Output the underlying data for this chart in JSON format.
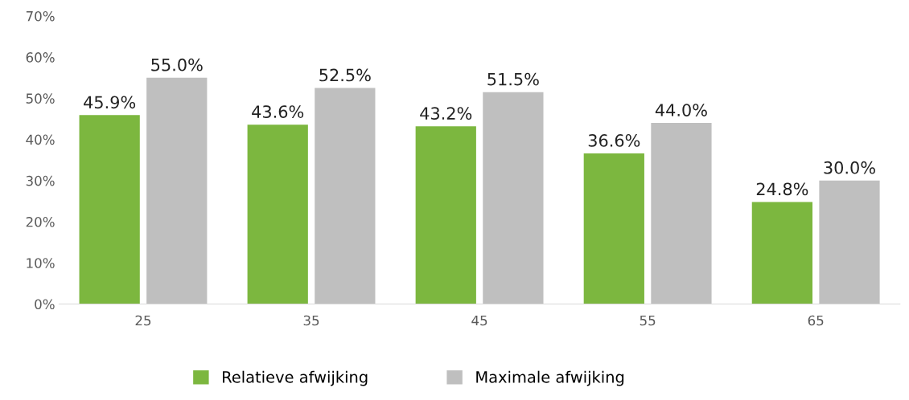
{
  "chart_data": {
    "type": "bar",
    "categories": [
      "25",
      "35",
      "45",
      "55",
      "65"
    ],
    "series": [
      {
        "name": "Relatieve afwijking",
        "color": "#7cb73f",
        "values": [
          45.9,
          43.6,
          43.2,
          36.6,
          24.8
        ],
        "value_labels": [
          "45.9%",
          "43.6%",
          "43.2%",
          "36.6%",
          "24.8%"
        ]
      },
      {
        "name": "Maximale afwijking",
        "color": "#bfbfbf",
        "values": [
          55.0,
          52.5,
          51.5,
          44.0,
          30.0
        ],
        "value_labels": [
          "55.0%",
          "52.5%",
          "51.5%",
          "44.0%",
          "30.0%"
        ]
      }
    ],
    "ylim": [
      0,
      70
    ],
    "yticks": [
      {
        "value": 0,
        "label": "0%"
      },
      {
        "value": 10,
        "label": "10%"
      },
      {
        "value": 20,
        "label": "20%"
      },
      {
        "value": 30,
        "label": "30%"
      },
      {
        "value": 40,
        "label": "40%"
      },
      {
        "value": 50,
        "label": "50%"
      },
      {
        "value": 60,
        "label": "60%"
      },
      {
        "value": 70,
        "label": "70%"
      }
    ],
    "grid": false,
    "legend": "bottom"
  }
}
